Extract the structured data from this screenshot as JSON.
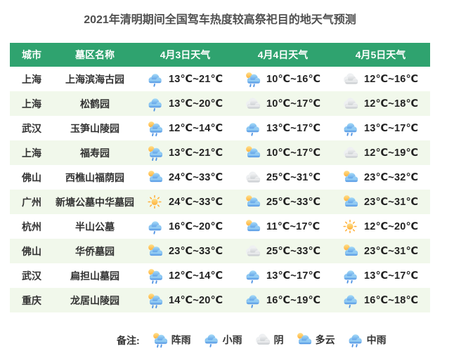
{
  "title": "2021年清明期间全国驾车热度较高祭祀目的地天气预测",
  "chart_data": {
    "type": "table",
    "columns": [
      "城市",
      "墓区名称",
      "4月3日天气",
      "4月4日天气",
      "4月5日天气"
    ],
    "rows": [
      {
        "city": "上海",
        "cemetery": "上海滨海古园",
        "days": [
          {
            "condition": "light-rain",
            "temp": "13℃~21℃"
          },
          {
            "condition": "shower",
            "temp": "10℃~16℃"
          },
          {
            "condition": "overcast",
            "temp": "12℃~16℃"
          }
        ]
      },
      {
        "city": "上海",
        "cemetery": "松鹤园",
        "days": [
          {
            "condition": "light-rain",
            "temp": "13℃~20℃"
          },
          {
            "condition": "overcast",
            "temp": "10℃~17℃"
          },
          {
            "condition": "overcast",
            "temp": "12℃~18℃"
          }
        ]
      },
      {
        "city": "武汉",
        "cemetery": "玉笋山陵园",
        "days": [
          {
            "condition": "shower",
            "temp": "12℃~14℃"
          },
          {
            "condition": "light-rain",
            "temp": "13℃~17℃"
          },
          {
            "condition": "moderate-rain",
            "temp": "13℃~17℃"
          }
        ]
      },
      {
        "city": "上海",
        "cemetery": "福寿园",
        "days": [
          {
            "condition": "shower",
            "temp": "13℃~21℃"
          },
          {
            "condition": "cloudy",
            "temp": "10℃~17℃"
          },
          {
            "condition": "overcast",
            "temp": "12℃~19℃"
          }
        ]
      },
      {
        "city": "佛山",
        "cemetery": "西樵山福荫园",
        "days": [
          {
            "condition": "cloudy",
            "temp": "24℃~33℃"
          },
          {
            "condition": "overcast",
            "temp": "25℃~31℃"
          },
          {
            "condition": "cloudy",
            "temp": "23℃~32℃"
          }
        ]
      },
      {
        "city": "广州",
        "cemetery": "新塘公墓中华墓园",
        "days": [
          {
            "condition": "sunny",
            "temp": "24℃~33℃"
          },
          {
            "condition": "cloudy",
            "temp": "25℃~33℃"
          },
          {
            "condition": "cloudy",
            "temp": "23℃~31℃"
          }
        ]
      },
      {
        "city": "杭州",
        "cemetery": "半山公墓",
        "days": [
          {
            "condition": "light-rain",
            "temp": "16℃~20℃"
          },
          {
            "condition": "cloudy",
            "temp": "11℃~17℃"
          },
          {
            "condition": "sunny",
            "temp": "12℃~20℃"
          }
        ]
      },
      {
        "city": "佛山",
        "cemetery": "华侨墓园",
        "days": [
          {
            "condition": "cloudy",
            "temp": "23℃~33℃"
          },
          {
            "condition": "overcast",
            "temp": "25℃~33℃"
          },
          {
            "condition": "cloudy",
            "temp": "23℃~31℃"
          }
        ]
      },
      {
        "city": "武汉",
        "cemetery": "扁担山墓园",
        "days": [
          {
            "condition": "shower",
            "temp": "12℃~14℃"
          },
          {
            "condition": "light-rain",
            "temp": "13℃~17℃"
          },
          {
            "condition": "moderate-rain",
            "temp": "13℃~17℃"
          }
        ]
      },
      {
        "city": "重庆",
        "cemetery": "龙居山陵园",
        "days": [
          {
            "condition": "shower",
            "temp": "14℃~20℃"
          },
          {
            "condition": "light-rain",
            "temp": "16℃~19℃"
          },
          {
            "condition": "light-rain",
            "temp": "16℃~18℃"
          }
        ]
      }
    ]
  },
  "legend": {
    "label": "备注:",
    "items": [
      {
        "icon": "shower",
        "label": "阵雨"
      },
      {
        "icon": "light-rain",
        "label": "小雨"
      },
      {
        "icon": "overcast",
        "label": "阴"
      },
      {
        "icon": "cloudy",
        "label": "多云"
      },
      {
        "icon": "moderate-rain",
        "label": "中雨"
      }
    ]
  },
  "icons": {
    "sunny": "晴 sun-icon",
    "cloudy": "多云 sun-behind-cloud-icon",
    "overcast": "阴 gray-cloud-icon",
    "shower": "阵雨 sun-cloud-rain-icon",
    "light-rain": "小雨 cloud-one-drop-icon",
    "moderate-rain": "中雨 cloud-two-drops-icon"
  },
  "colors": {
    "header_bg": "#2fa36f",
    "header_text": "#ffffff",
    "stripe_bg": "#f1f8eb",
    "title_text": "#4f4f4f",
    "body_text": "#333333",
    "temp_text": "#222222",
    "rain_blue": "#4e92e3",
    "sun_yellow": "#ffcf3e",
    "cloud_gray": "#c8ccd0"
  }
}
